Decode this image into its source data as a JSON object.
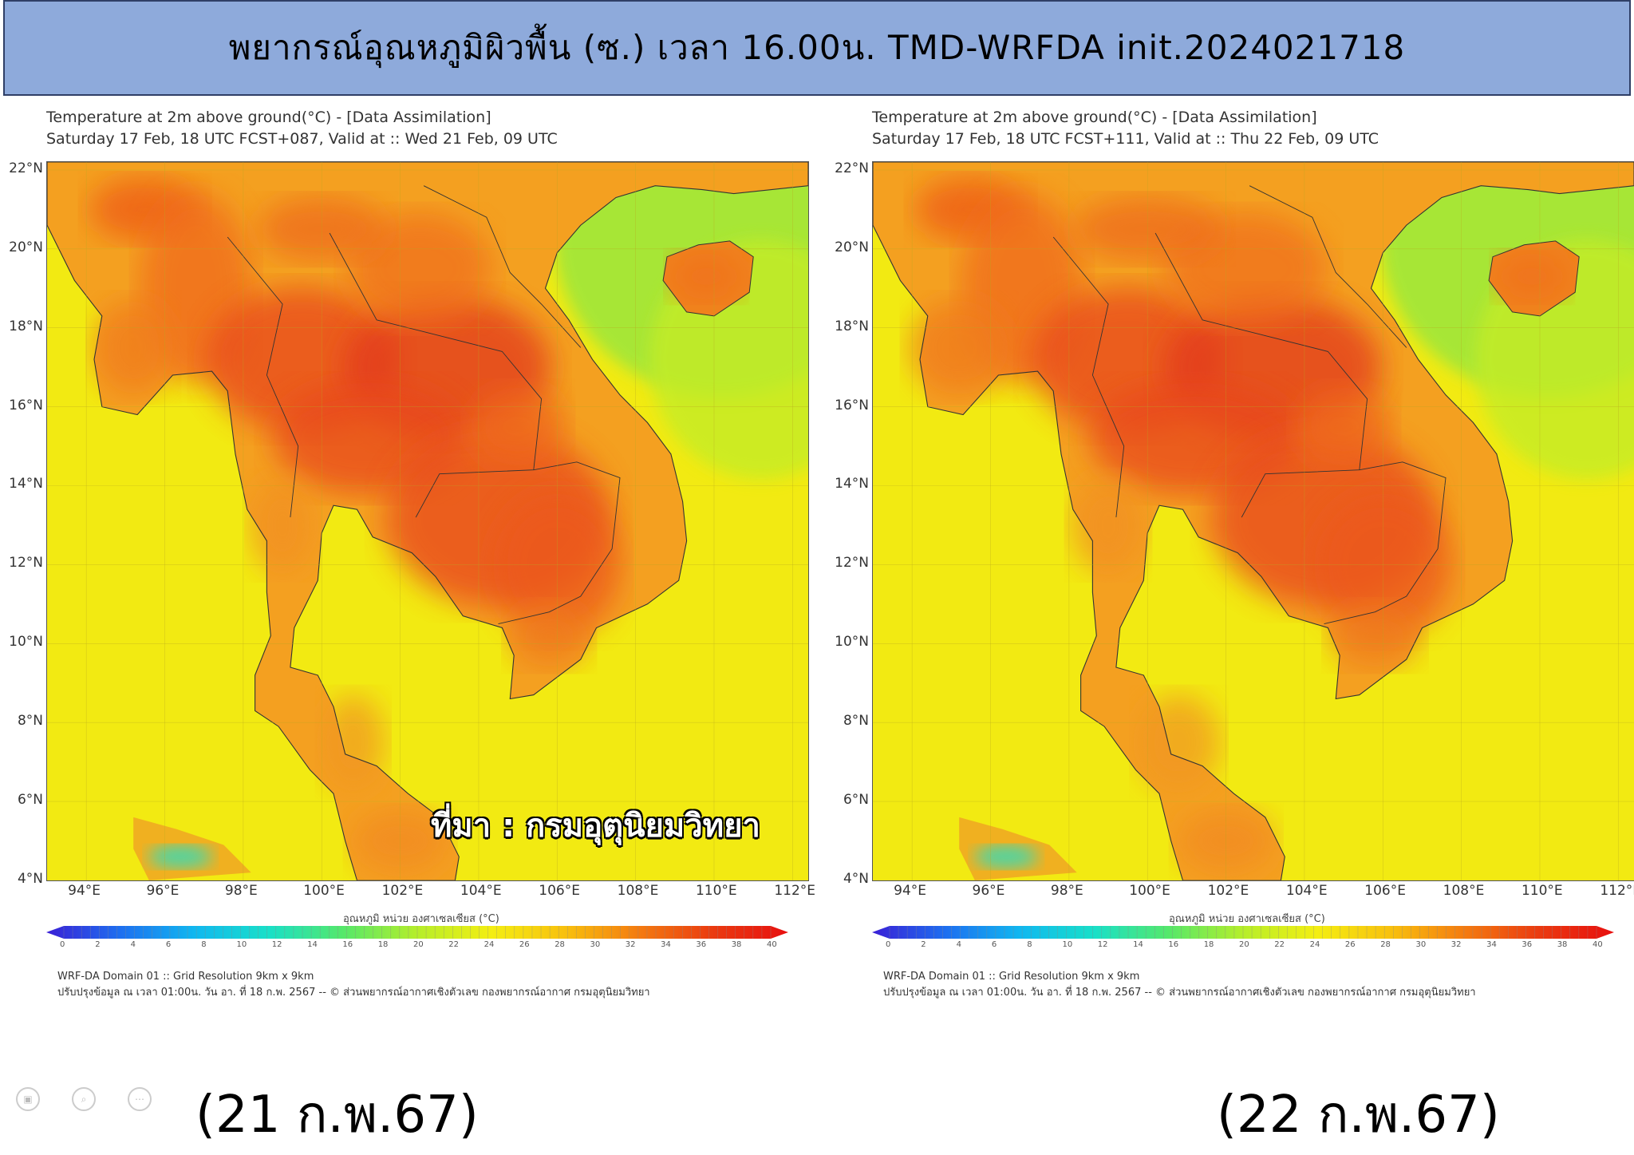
{
  "header": {
    "title": "พยากรณ์อุณหภูมิผิวพื้น (ซ.) เวลา 16.00น. TMD-WRFDA init.2024021718"
  },
  "panels": [
    {
      "title_line1": "Temperature at 2m above ground(°C) - [Data Assimilation]",
      "title_line2": "Saturday 17 Feb, 18 UTC FCST+087, Valid at :: Wed 21 Feb, 09 UTC",
      "date_label": "(21 ก.พ.67)",
      "source_text": "ที่มา : กรมอุตุนิยมวิทยา",
      "footnote_line1": "WRF-DA Domain 01 :: Grid Resolution 9km x 9km",
      "footnote_line2": "ปรับปรุงข้อมูล ณ เวลา 01:00น. วัน อา. ที่ 18 ก.พ. 2567 -- © ส่วนพยากรณ์อากาศเชิงตัวเลข กองพยากรณ์อากาศ กรมอุตุนิยมวิทยา",
      "colorbar_title": "อุณหภูมิ หน่วย องศาเซลเซียส (°C)"
    },
    {
      "title_line1": "Temperature at 2m above ground(°C) - [Data Assimilation]",
      "title_line2": "Saturday 17 Feb, 18 UTC FCST+111, Valid at :: Thu 22 Feb, 09 UTC",
      "date_label": "(22 ก.พ.67)",
      "source_text": "",
      "footnote_line1": "WRF-DA Domain 01 :: Grid Resolution 9km x 9km",
      "footnote_line2": "ปรับปรุงข้อมูล ณ เวลา 01:00น. วัน อา. ที่ 18 ก.พ. 2567 -- © ส่วนพยากรณ์อากาศเชิงตัวเลข กองพยากรณ์อากาศ กรมอุตุนิยมวิทยา",
      "colorbar_title": "อุณหภูมิ หน่วย องศาเซลเซียส (°C)"
    }
  ],
  "axes": {
    "lat_labels": [
      "22°N",
      "20°N",
      "18°N",
      "16°N",
      "14°N",
      "12°N",
      "10°N",
      "8°N",
      "6°N",
      "4°N"
    ],
    "lon_labels": [
      "94°E",
      "96°E",
      "98°E",
      "100°E",
      "102°E",
      "104°E",
      "106°E",
      "108°E",
      "110°E",
      "112°E"
    ]
  },
  "colorbar": {
    "ticks": [
      "0",
      "2",
      "4",
      "6",
      "8",
      "10",
      "12",
      "14",
      "16",
      "18",
      "20",
      "22",
      "24",
      "26",
      "28",
      "30",
      "32",
      "34",
      "36",
      "38",
      "40"
    ],
    "colors": [
      "#3a1fd6",
      "#1e6ff0",
      "#10b8f0",
      "#19e0c8",
      "#55e86a",
      "#b6ee2a",
      "#f4ee12",
      "#f8c00e",
      "#f47a10",
      "#ea3a10",
      "#e80f0f"
    ]
  }
}
